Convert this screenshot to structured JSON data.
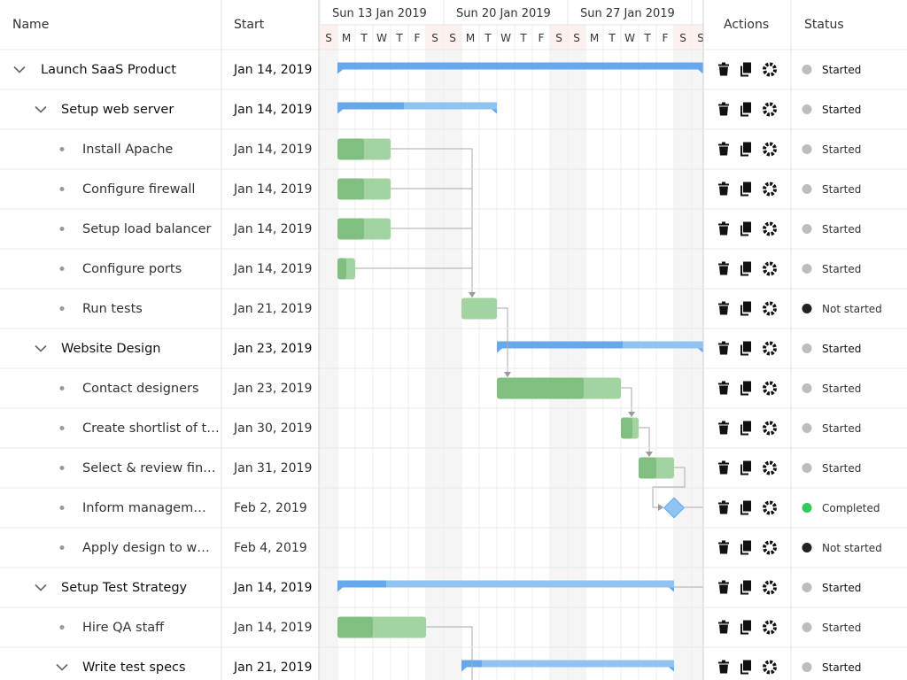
{
  "header": {
    "name": "Name",
    "start": "Start",
    "actions": "Actions",
    "status": "Status"
  },
  "timeline": {
    "weeks": [
      "Sun 13 Jan 2019",
      "Sun 20 Jan 2019",
      "Sun 27 Jan 2019"
    ],
    "days": [
      "S",
      "M",
      "T",
      "W",
      "T",
      "F",
      "S",
      "S",
      "M",
      "T",
      "W",
      "T",
      "F",
      "S",
      "S",
      "M",
      "T",
      "W",
      "T",
      "F",
      "S",
      "S"
    ]
  },
  "rows": [
    {
      "name": "Launch SaaS Product",
      "start": "Jan 14, 2019",
      "status": "Started"
    },
    {
      "name": "Setup web server",
      "start": "Jan 14, 2019",
      "status": "Started"
    },
    {
      "name": "Install Apache",
      "start": "Jan 14, 2019",
      "status": "Started"
    },
    {
      "name": "Configure firewall",
      "start": "Jan 14, 2019",
      "status": "Started"
    },
    {
      "name": "Setup load balancer",
      "start": "Jan 14, 2019",
      "status": "Started"
    },
    {
      "name": "Configure ports",
      "start": "Jan 14, 2019",
      "status": "Started"
    },
    {
      "name": "Run tests",
      "start": "Jan 21, 2019",
      "status": "Not started"
    },
    {
      "name": "Website Design",
      "start": "Jan 23, 2019",
      "status": "Started"
    },
    {
      "name": "Contact designers",
      "start": "Jan 23, 2019",
      "status": "Started"
    },
    {
      "name": "Create shortlist of t…",
      "start": "Jan 30, 2019",
      "status": "Started"
    },
    {
      "name": "Select & review fin…",
      "start": "Jan 31, 2019",
      "status": "Started"
    },
    {
      "name": "Inform managem…",
      "start": "Feb 2, 2019",
      "status": "Completed"
    },
    {
      "name": "Apply design to w…",
      "start": "Feb 4, 2019",
      "status": "Not started"
    },
    {
      "name": "Setup Test Strategy",
      "start": "Jan 14, 2019",
      "status": "Started"
    },
    {
      "name": "Hire QA staff",
      "start": "Jan 14, 2019",
      "status": "Started"
    },
    {
      "name": "Write test specs",
      "start": "Jan 21, 2019",
      "status": "Started"
    }
  ]
}
